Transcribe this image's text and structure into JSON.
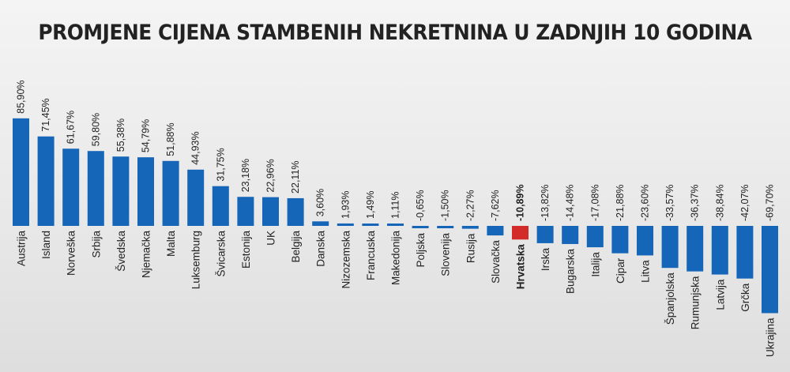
{
  "chart_data": {
    "type": "bar",
    "title": "PROMJENE CIJENA STAMBENIH NEKRETNINA U ZADNJIH 10 GODINA",
    "categories": [
      "Austrija",
      "Island",
      "Norveška",
      "Srbija",
      "Švedska",
      "Njemačka",
      "Malta",
      "Luksemburg",
      "Švicarska",
      "Estonija",
      "UK",
      "Belgija",
      "Danska",
      "Nizozemska",
      "Francuska",
      "Makedonija",
      "Poljska",
      "Slovenija",
      "Rusija",
      "Slovačka",
      "Hrvatska",
      "Irska",
      "Bugarska",
      "Italija",
      "Cipar",
      "Litva",
      "Španjolska",
      "Rumunjska",
      "Latvija",
      "Grčka",
      "Ukrajina"
    ],
    "values": [
      85.9,
      71.45,
      61.67,
      59.8,
      55.38,
      54.79,
      51.88,
      44.93,
      31.75,
      23.18,
      22.96,
      22.11,
      3.6,
      1.93,
      1.49,
      1.11,
      -0.65,
      -1.5,
      -2.27,
      -7.62,
      -10.89,
      -13.82,
      -14.48,
      -17.08,
      -21.88,
      -23.6,
      -33.57,
      -36.37,
      -38.84,
      -42.07,
      -69.7
    ],
    "value_labels": [
      "85,90%",
      "71,45%",
      "61,67%",
      "59,80%",
      "55,38%",
      "54,79%",
      "51,88%",
      "44,93%",
      "31,75%",
      "23,18%",
      "22,96%",
      "22,11%",
      "3,60%",
      "1,93%",
      "1,49%",
      "1,11%",
      "-0,65%",
      "-1,50%",
      "-2,27%",
      "-7,62%",
      "-10,89%",
      "-13,82%",
      "-14,48%",
      "-17,08%",
      "-21,88%",
      "-23,60%",
      "-33,57%",
      "-36,37%",
      "-38,84%",
      "-42,07%",
      "-69,70%"
    ],
    "highlight": "Hrvatska",
    "colors": {
      "bar": "#1565b8",
      "highlight": "#d32a2a",
      "text": "#222222"
    },
    "xlabel": "",
    "ylabel": "",
    "grid": false,
    "legend": "none"
  }
}
